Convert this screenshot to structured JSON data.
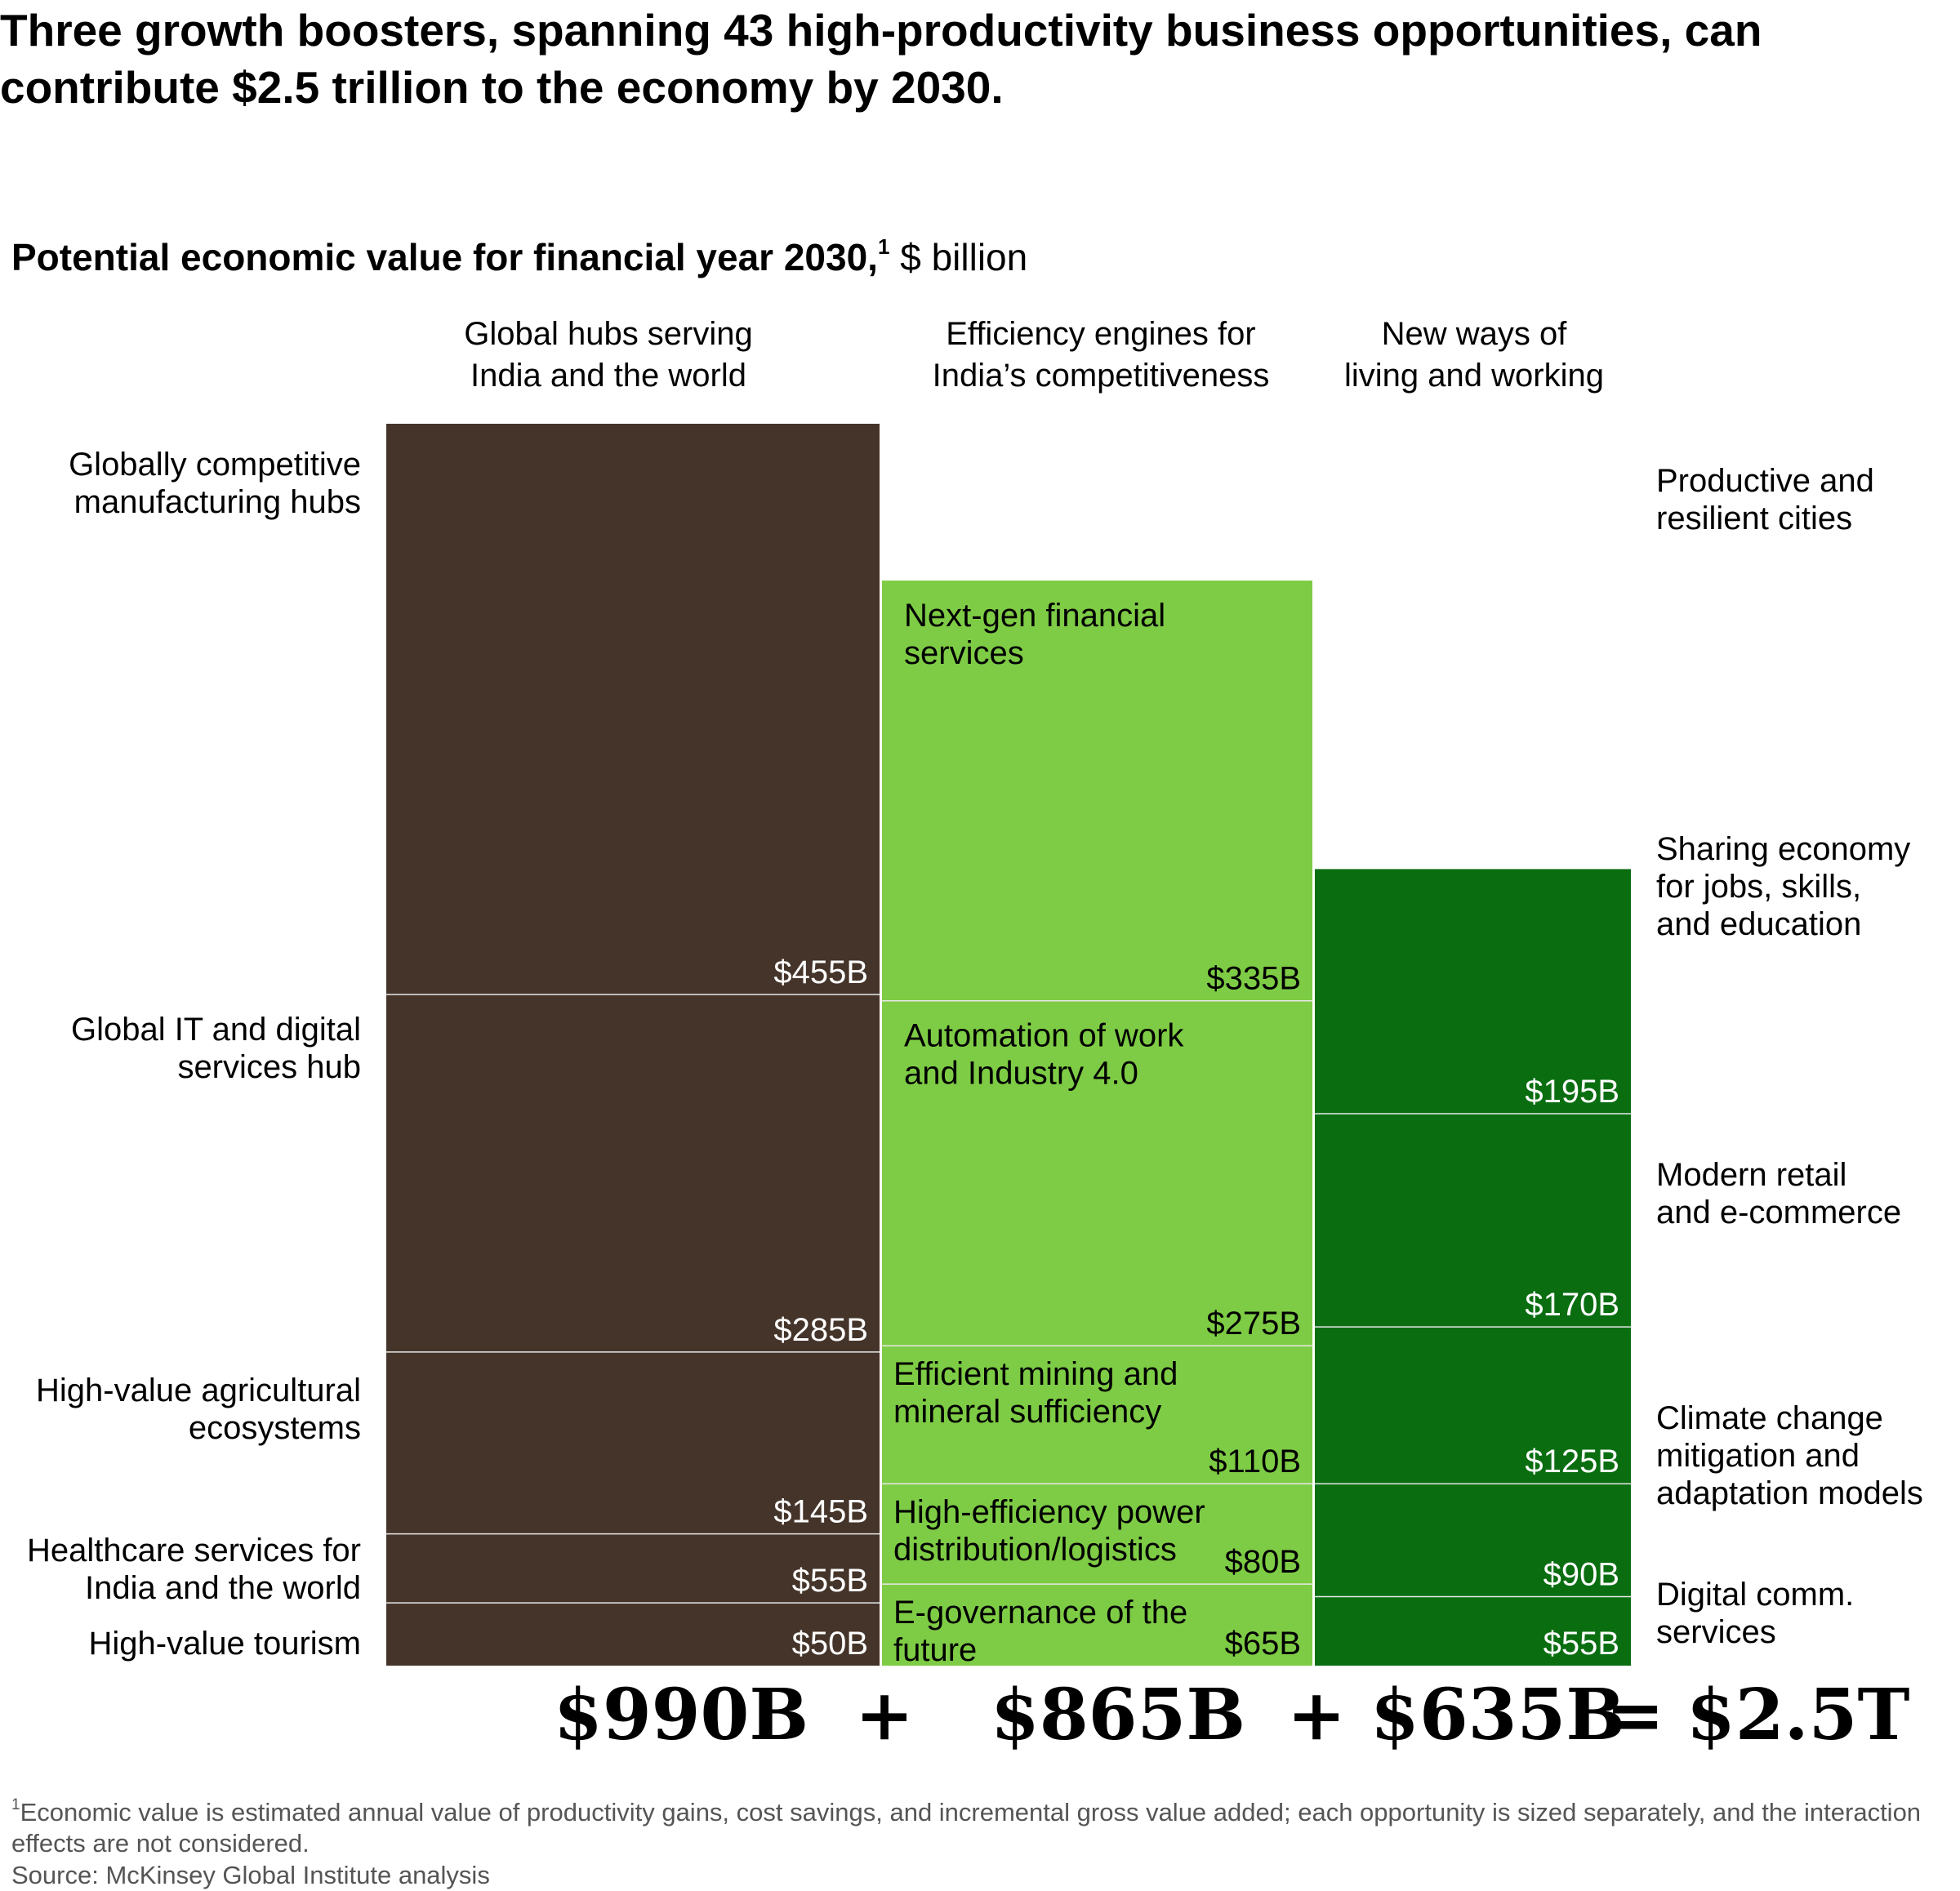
{
  "title": "Three growth boosters, spanning 43 high-productivity business opportunities, can contribute $2.5 trillion to the economy by 2030.",
  "subtitle_bold": "Potential economic value for financial year 2030,",
  "subtitle_sup": "1",
  "subtitle_unit": " $ billion",
  "chart_data": {
    "type": "stacked-bar",
    "unit": "$ billion",
    "columns": [
      {
        "header": "Global hubs serving\nIndia and the world",
        "color": "#45342A",
        "total_label": "$990B",
        "segments": [
          {
            "name": "Globally competitive\nmanufacturing hubs",
            "value": 455,
            "label": "$455B"
          },
          {
            "name": "Global IT and digital\nservices hub",
            "value": 285,
            "label": "$285B"
          },
          {
            "name": "High-value agricultural\necosystems",
            "value": 145,
            "label": "$145B"
          },
          {
            "name": "Healthcare services for\nIndia and the world",
            "value": 55,
            "label": "$55B"
          },
          {
            "name": "High-value tourism",
            "value": 50,
            "label": "$50B"
          }
        ]
      },
      {
        "header": "Efficiency engines for\nIndia’s competitiveness",
        "color": "#7ECC45",
        "total_label": "$865B",
        "segments": [
          {
            "name": "Next-gen financial\nservices",
            "value": 335,
            "label": "$335B"
          },
          {
            "name": "Automation of work\nand Industry 4.0",
            "value": 275,
            "label": "$275B"
          },
          {
            "name": "Efficient mining and\nmineral sufficiency",
            "value": 110,
            "label": "$110B"
          },
          {
            "name": "High-efficiency power\ndistribution/logistics",
            "value": 80,
            "label": "$80B"
          },
          {
            "name": "E-governance of the\nfuture",
            "value": 65,
            "label": "$65B"
          }
        ]
      },
      {
        "header": "New ways of\nliving and working",
        "color": "#0A6E11",
        "total_label": "$635B",
        "segments": [
          {
            "name": "Productive and\nresilient cities",
            "value": 195,
            "label": "$195B"
          },
          {
            "name": "Sharing economy\nfor jobs, skills,\nand education",
            "value": 170,
            "label": "$170B"
          },
          {
            "name": "Modern retail\nand e-commerce",
            "value": 125,
            "label": "$125B"
          },
          {
            "name": "Climate change\nmitigation and\nadaptation models",
            "value": 90,
            "label": "$90B"
          },
          {
            "name": "Digital comm.\nservices",
            "value": 55,
            "label": "$55B"
          }
        ]
      }
    ],
    "grand_total_label": "$2.5T"
  },
  "totals": {
    "t1": "$990B",
    "plus1": "+",
    "t2": "$865B",
    "plus2": "+",
    "t3": "$635B",
    "equals": "=",
    "grand": "$2.5T"
  },
  "footnote_sup": "1",
  "footnote_text": "Economic value is estimated annual value of productivity gains, cost savings, and incremental gross value added; each opportunity is sized separately, and the interaction effects are not considered.",
  "source": "Source: McKinsey Global Institute analysis"
}
